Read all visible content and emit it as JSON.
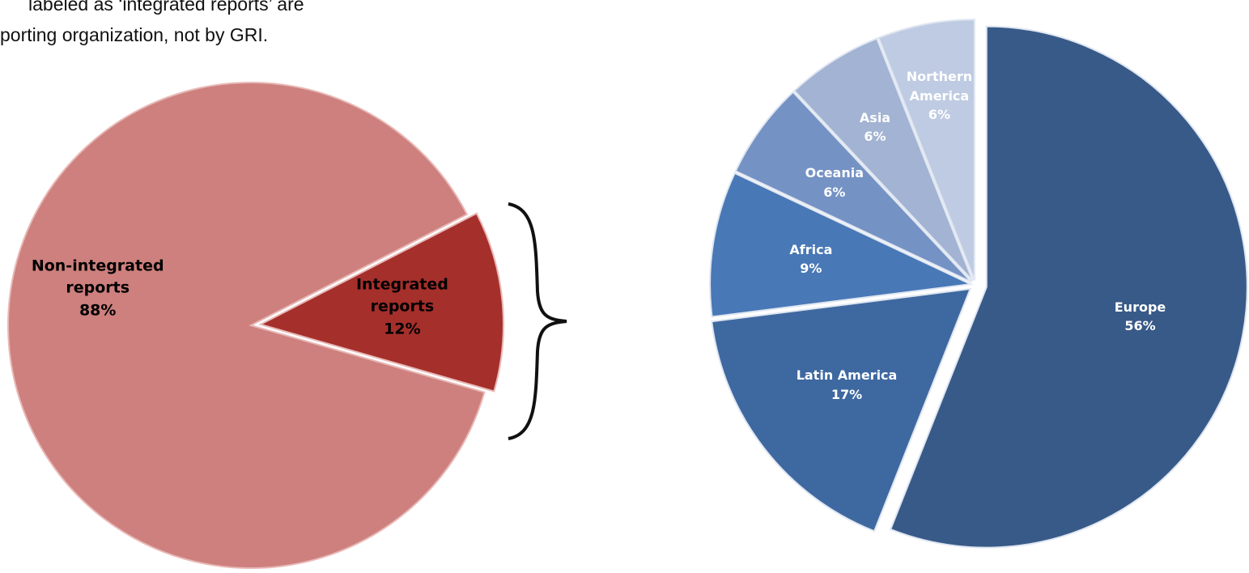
{
  "chart_data": [
    {
      "type": "pie",
      "annotations": [
        "labeled as ‘integrated reports’ are",
        "porting organization, not by GRI."
      ],
      "categories": [
        "Non-integrated reports",
        "Integrated reports"
      ],
      "values": [
        88,
        12
      ],
      "value_labels": [
        "88%",
        "12%"
      ],
      "colors": [
        "#cd807d",
        "#a52f2b"
      ]
    },
    {
      "type": "pie",
      "categories": [
        "Europe",
        "Latin America",
        "Africa",
        "Oceania",
        "Asia",
        "Northern America"
      ],
      "values": [
        56,
        17,
        9,
        6,
        6,
        6
      ],
      "value_labels": [
        "56%",
        "17%",
        "9%",
        "6%",
        "6%",
        "6%"
      ],
      "colors": [
        "#385a88",
        "#3e68a0",
        "#4878b6",
        "#7592c4",
        "#a2b3d3",
        "#bfcbe2"
      ]
    }
  ]
}
